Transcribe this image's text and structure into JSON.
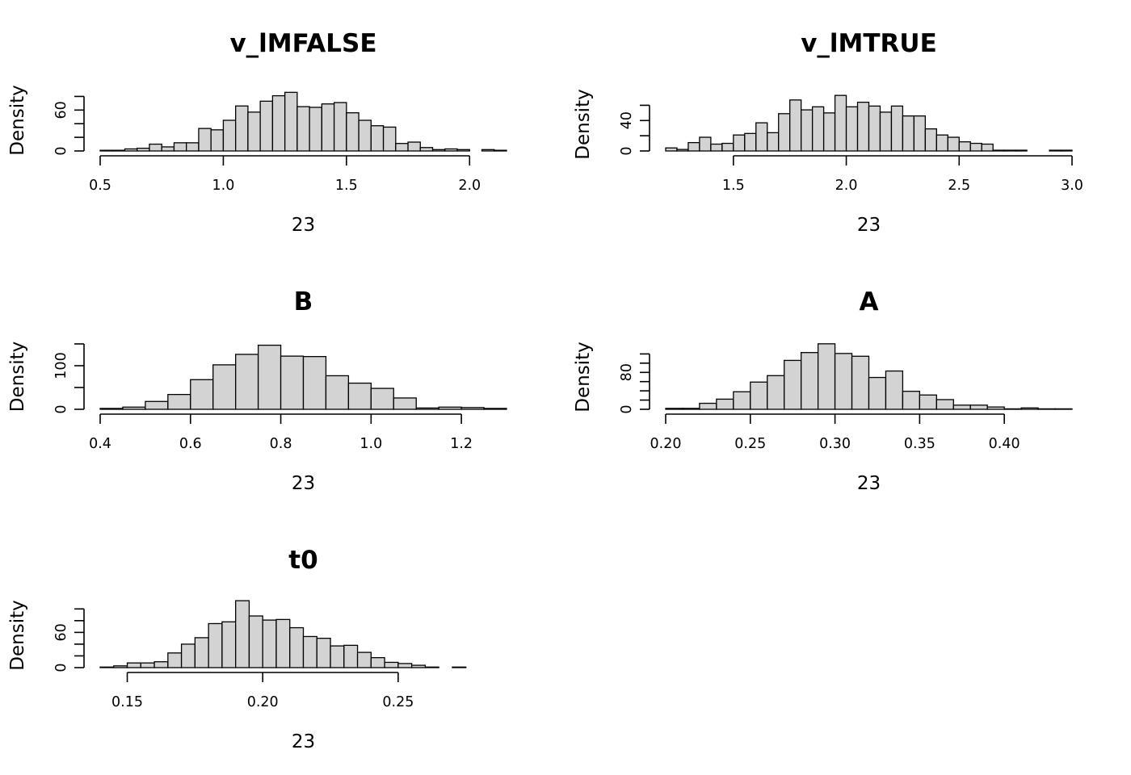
{
  "chart_data": [
    {
      "type": "bar",
      "title": "v_lMFALSE",
      "xlabel": "23",
      "ylabel": "Density",
      "xlim": [
        0.5,
        2.15
      ],
      "ylim": [
        0,
        90
      ],
      "xticks": [
        0.5,
        1.0,
        1.5,
        2.0
      ],
      "xtick_labels": [
        "0.5",
        "1.0",
        "1.5",
        "2.0"
      ],
      "yticks": [
        0,
        20,
        40,
        60,
        80
      ],
      "ytick_labels": [
        "0",
        "",
        "",
        "60",
        ""
      ],
      "bin_start": 0.5,
      "bin_width": 0.05,
      "values": [
        1,
        1,
        3,
        4,
        10,
        6,
        12,
        12,
        33,
        31,
        45,
        66,
        57,
        73,
        81,
        86,
        65,
        64,
        69,
        71,
        56,
        45,
        37,
        35,
        11,
        13,
        5,
        2,
        3,
        2,
        0,
        2,
        1
      ]
    },
    {
      "type": "bar",
      "title": "v_lMTRUE",
      "xlabel": "23",
      "ylabel": "Density",
      "xlim": [
        1.2,
        3.0
      ],
      "ylim": [
        0,
        70
      ],
      "xticks": [
        1.5,
        2.0,
        2.5,
        3.0
      ],
      "xtick_labels": [
        "1.5",
        "2.0",
        "2.5",
        "3.0"
      ],
      "yticks": [
        0,
        20,
        40,
        60
      ],
      "ytick_labels": [
        "0",
        "",
        "40",
        ""
      ],
      "bin_start": 1.2,
      "bin_width": 0.05,
      "values": [
        4,
        2,
        11,
        18,
        9,
        10,
        21,
        23,
        37,
        24,
        49,
        67,
        54,
        58,
        50,
        73,
        58,
        64,
        59,
        51,
        59,
        46,
        46,
        29,
        21,
        18,
        12,
        10,
        9,
        1,
        1,
        1,
        0,
        0,
        1,
        1
      ]
    },
    {
      "type": "bar",
      "title": "B",
      "xlabel": "23",
      "ylabel": "Density",
      "xlim": [
        0.4,
        1.3
      ],
      "ylim": [
        0,
        150
      ],
      "xticks": [
        0.4,
        0.6,
        0.8,
        1.0,
        1.2
      ],
      "xtick_labels": [
        "0.4",
        "0.6",
        "0.8",
        "1.0",
        "1.2"
      ],
      "yticks": [
        0,
        50,
        100,
        150
      ],
      "ytick_labels": [
        "0",
        "",
        "100",
        ""
      ],
      "bin_start": 0.4,
      "bin_width": 0.05,
      "values": [
        2,
        5,
        18,
        34,
        68,
        102,
        126,
        147,
        122,
        121,
        77,
        60,
        48,
        26,
        3,
        5,
        4,
        2
      ]
    },
    {
      "type": "bar",
      "title": "A",
      "xlabel": "23",
      "ylabel": "Density",
      "xlim": [
        0.2,
        0.44
      ],
      "ylim": [
        0,
        140
      ],
      "xticks": [
        0.2,
        0.25,
        0.3,
        0.35,
        0.4
      ],
      "xtick_labels": [
        "0.20",
        "0.25",
        "0.30",
        "0.35",
        "0.40"
      ],
      "yticks": [
        0,
        20,
        40,
        60,
        80,
        100,
        120
      ],
      "ytick_labels": [
        "0",
        "",
        "",
        "",
        "80",
        "",
        ""
      ],
      "bin_start": 0.2,
      "bin_width": 0.01,
      "values": [
        2,
        2,
        13,
        22,
        38,
        59,
        73,
        106,
        123,
        142,
        121,
        115,
        69,
        83,
        39,
        31,
        21,
        9,
        9,
        5,
        1,
        3,
        1,
        1
      ]
    },
    {
      "type": "bar",
      "title": "t0",
      "xlabel": "23",
      "ylabel": "Density",
      "xlim": [
        0.14,
        0.29
      ],
      "ylim": [
        0,
        110
      ],
      "xticks": [
        0.15,
        0.2,
        0.25
      ],
      "xtick_labels": [
        "0.15",
        "0.20",
        "0.25"
      ],
      "yticks": [
        0,
        20,
        40,
        60,
        80,
        100
      ],
      "ytick_labels": [
        "0",
        "",
        "",
        "60",
        "",
        ""
      ],
      "bin_start": 0.14,
      "bin_width": 0.005,
      "values": [
        1,
        3,
        8,
        8,
        10,
        25,
        40,
        51,
        75,
        78,
        114,
        88,
        81,
        82,
        68,
        53,
        50,
        37,
        38,
        26,
        17,
        9,
        7,
        4,
        1,
        0,
        1,
        0,
        0,
        0
      ]
    }
  ]
}
